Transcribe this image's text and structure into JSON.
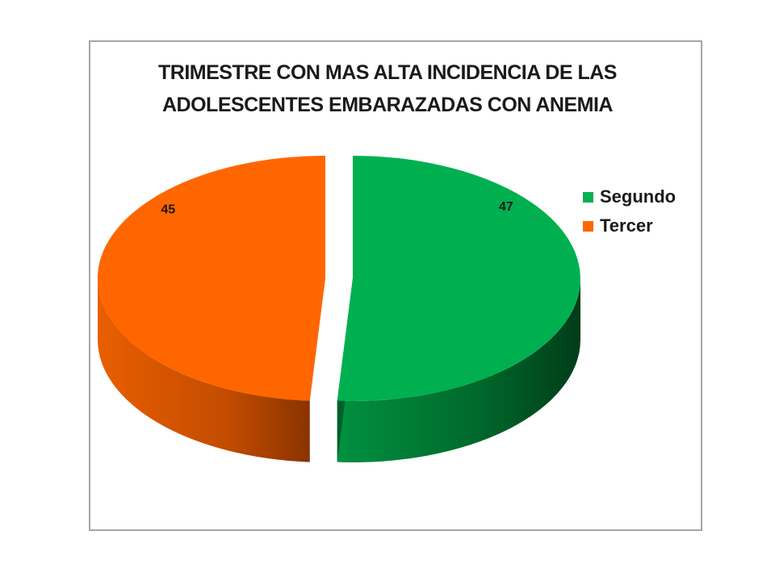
{
  "chart_data": {
    "type": "pie",
    "title": "TRIMESTRE CON MAS ALTA INCIDENCIA DE LAS\nADOLESCENTES EMBARAZADAS CON ANEMIA",
    "categories": [
      "Segundo",
      "Tercer"
    ],
    "values": [
      47,
      45
    ],
    "colors": [
      "#00b050",
      "#ff6600"
    ],
    "data_labels": [
      "47",
      "45"
    ],
    "legend_position": "right",
    "style": "3d-exploded"
  }
}
